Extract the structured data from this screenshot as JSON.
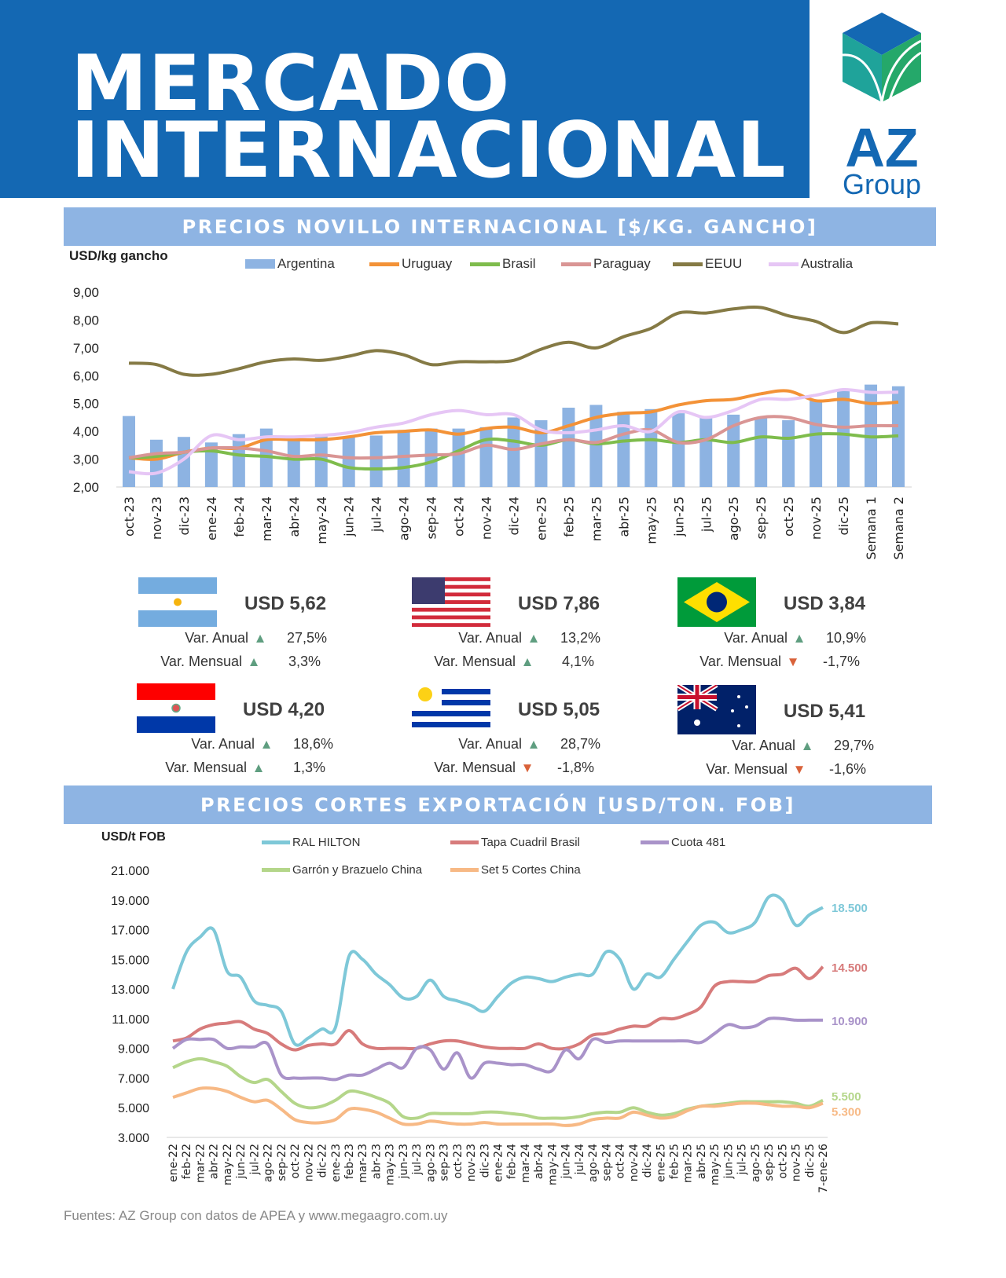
{
  "header": {
    "title_line1": "MERCADO",
    "title_line2": "INTERNACIONAL",
    "logo_text": "AZ Group",
    "brand_color": "#1468b3"
  },
  "section1": {
    "title": "PRECIOS NOVILLO INTERNACIONAL [$/KG. GANCHO]"
  },
  "section2": {
    "title": "PRECIOS CORTES EXPORTACIÓN [USD/TON. FOB]"
  },
  "chart_data": [
    {
      "type": "bar+line",
      "ylabel": "USD/kg gancho",
      "ylim": [
        2,
        9
      ],
      "yticks": [
        "9,00",
        "8,00",
        "7,00",
        "6,00",
        "5,00",
        "4,00",
        "3,00",
        "2,00"
      ],
      "legend": "top",
      "categories": [
        "oct-23",
        "nov-23",
        "dic-23",
        "ene-24",
        "feb-24",
        "mar-24",
        "abr-24",
        "may-24",
        "jun-24",
        "jul-24",
        "ago-24",
        "sep-24",
        "oct-24",
        "nov-24",
        "dic-24",
        "ene-25",
        "feb-25",
        "mar-25",
        "abr-25",
        "may-25",
        "jun-25",
        "jul-25",
        "ago-25",
        "sep-25",
        "oct-25",
        "nov-25",
        "dic-25",
        "Semana 1",
        "Semana 2"
      ],
      "series": [
        {
          "name": "Argentina",
          "kind": "bar",
          "color": "#8db3e2",
          "values": [
            4.55,
            3.7,
            3.8,
            3.6,
            3.9,
            4.1,
            3.7,
            3.9,
            3.8,
            3.85,
            4.05,
            4.1,
            4.1,
            4.15,
            4.5,
            4.4,
            4.85,
            4.95,
            4.7,
            4.8,
            4.65,
            4.5,
            4.6,
            4.5,
            4.4,
            5.1,
            5.45,
            5.68,
            5.62
          ]
        },
        {
          "name": "Uruguay",
          "kind": "line",
          "color": "#f39237",
          "values": [
            3.05,
            3.0,
            3.25,
            3.4,
            3.4,
            3.7,
            3.7,
            3.7,
            3.8,
            3.95,
            4.0,
            4.05,
            3.9,
            4.1,
            4.15,
            3.95,
            4.2,
            4.5,
            4.65,
            4.7,
            4.95,
            5.1,
            5.15,
            5.35,
            5.45,
            5.1,
            5.15,
            5.0,
            5.05
          ]
        },
        {
          "name": "Brasil",
          "kind": "line",
          "color": "#7ebc4c",
          "values": [
            3.05,
            3.1,
            3.25,
            3.3,
            3.15,
            3.1,
            3.0,
            3.0,
            2.7,
            2.65,
            2.7,
            2.9,
            3.3,
            3.7,
            3.65,
            3.5,
            3.7,
            3.55,
            3.65,
            3.7,
            3.6,
            3.7,
            3.6,
            3.8,
            3.75,
            3.9,
            3.9,
            3.8,
            3.84
          ]
        },
        {
          "name": "Paraguay",
          "kind": "line",
          "color": "#d99594",
          "values": [
            3.05,
            3.2,
            3.25,
            3.4,
            3.4,
            3.3,
            3.1,
            3.15,
            3.05,
            3.05,
            3.1,
            3.15,
            3.2,
            3.5,
            3.35,
            3.55,
            3.7,
            3.6,
            3.9,
            4.05,
            3.6,
            3.7,
            4.2,
            4.5,
            4.5,
            4.25,
            4.15,
            4.2,
            4.2
          ]
        },
        {
          "name": "EEUU",
          "kind": "line",
          "color": "#857a45",
          "values": [
            6.45,
            6.4,
            6.05,
            6.05,
            6.25,
            6.5,
            6.6,
            6.55,
            6.7,
            6.9,
            6.75,
            6.4,
            6.5,
            6.5,
            6.55,
            6.95,
            7.2,
            7.0,
            7.4,
            7.7,
            8.25,
            8.25,
            8.4,
            8.45,
            8.15,
            7.95,
            7.55,
            7.9,
            7.86
          ]
        },
        {
          "name": "Australia",
          "kind": "line",
          "color": "#e6c6f5",
          "values": [
            2.55,
            2.5,
            3.0,
            3.85,
            3.7,
            3.8,
            3.8,
            3.85,
            3.95,
            4.15,
            4.3,
            4.6,
            4.75,
            4.6,
            4.6,
            4.05,
            3.95,
            4.05,
            4.2,
            4.0,
            4.7,
            4.5,
            4.75,
            5.15,
            5.15,
            5.3,
            5.5,
            5.4,
            5.41
          ]
        }
      ]
    },
    {
      "type": "line",
      "ylabel": "USD/t FOB",
      "ylim": [
        3000,
        21000
      ],
      "yticks": [
        "21.000",
        "19.000",
        "17.000",
        "15.000",
        "13.000",
        "11.000",
        "9.000",
        "7.000",
        "5.000",
        "3.000"
      ],
      "legend": "top",
      "categories": [
        "ene-22",
        "feb-22",
        "mar-22",
        "abr-22",
        "may-22",
        "jun-22",
        "jul-22",
        "ago-22",
        "sep-22",
        "oct-22",
        "nov-22",
        "dic-22",
        "ene-23",
        "feb-23",
        "mar-23",
        "abr-23",
        "may-23",
        "jun-23",
        "jul-23",
        "ago-23",
        "sep-23",
        "oct-23",
        "nov-23",
        "dic-23",
        "ene-24",
        "feb-24",
        "mar-24",
        "abr-24",
        "may-24",
        "jun-24",
        "jul-24",
        "ago-24",
        "sep-24",
        "oct-24",
        "nov-24",
        "dic-24",
        "ene-25",
        "feb-25",
        "mar-25",
        "abr-25",
        "may-25",
        "jun-25",
        "jul-25",
        "ago-25",
        "sep-25",
        "oct-25",
        "nov-25",
        "dic-25",
        "7-ene-26"
      ],
      "series": [
        {
          "name": "RAL HILTON",
          "color": "#7ec8d8",
          "end_label": "18.500",
          "values": [
            13000,
            15500,
            16500,
            17000,
            14200,
            13800,
            12200,
            11900,
            11500,
            9300,
            9700,
            10300,
            10400,
            15200,
            15000,
            14000,
            13300,
            12400,
            12500,
            13600,
            12500,
            12200,
            11900,
            11500,
            12500,
            13400,
            13800,
            13700,
            13500,
            13800,
            14000,
            14000,
            15500,
            15000,
            13000,
            14000,
            13800,
            15000,
            16200,
            17300,
            17500,
            16800,
            17000,
            17500,
            19200,
            19000,
            17300,
            18000,
            18500
          ]
        },
        {
          "name": "Tapa Cuadril Brasil",
          "color": "#d77b7b",
          "end_label": "14.500",
          "values": [
            9500,
            9700,
            10300,
            10600,
            10700,
            10800,
            10300,
            10000,
            9300,
            8900,
            9200,
            9300,
            9300,
            10200,
            9300,
            9000,
            9000,
            9000,
            9000,
            9300,
            9500,
            9500,
            9300,
            9100,
            9000,
            9000,
            9000,
            9300,
            9000,
            9000,
            9300,
            9900,
            10000,
            10300,
            10500,
            10500,
            11000,
            11000,
            11300,
            11800,
            13200,
            13500,
            13500,
            13500,
            13900,
            14000,
            14400,
            13700,
            14500
          ]
        },
        {
          "name": "Cuota 481",
          "color": "#a993c9",
          "end_label": "10.900",
          "values": [
            9000,
            9600,
            9600,
            9600,
            9000,
            9100,
            9100,
            9300,
            7200,
            7000,
            7000,
            7000,
            6900,
            7200,
            7200,
            7600,
            8000,
            7700,
            9000,
            8900,
            7600,
            8700,
            7000,
            8000,
            8000,
            7900,
            7900,
            7600,
            7500,
            8900,
            8300,
            9600,
            9400,
            9500,
            9500,
            9500,
            9500,
            9500,
            9500,
            9400,
            10000,
            10600,
            10400,
            10500,
            11000,
            11000,
            10900,
            10900,
            10900
          ]
        },
        {
          "name": "Garrón y Brazuelo China",
          "color": "#b4d68a",
          "end_label": "5.500",
          "values": [
            7700,
            8100,
            8300,
            8100,
            7800,
            7100,
            6700,
            6900,
            6100,
            5300,
            5000,
            5100,
            5500,
            6100,
            6000,
            5700,
            5300,
            4400,
            4300,
            4600,
            4600,
            4600,
            4600,
            4700,
            4700,
            4600,
            4500,
            4300,
            4300,
            4300,
            4400,
            4600,
            4700,
            4700,
            5000,
            4700,
            4500,
            4600,
            4900,
            5100,
            5200,
            5300,
            5400,
            5400,
            5400,
            5400,
            5300,
            5100,
            5500
          ]
        },
        {
          "name": "Set 5 Cortes China",
          "color": "#f7b985",
          "end_label": "5.300",
          "values": [
            5700,
            6000,
            6300,
            6300,
            6100,
            5700,
            5400,
            5500,
            4900,
            4200,
            4000,
            4000,
            4200,
            4900,
            4900,
            4700,
            4300,
            3900,
            3900,
            4100,
            4000,
            3900,
            3900,
            4000,
            3900,
            3900,
            3900,
            3900,
            3900,
            3800,
            3900,
            4200,
            4300,
            4300,
            4700,
            4500,
            4300,
            4400,
            4800,
            5100,
            5100,
            5200,
            5300,
            5300,
            5200,
            5100,
            5100,
            5000,
            5300
          ]
        }
      ]
    }
  ],
  "cards": [
    {
      "country": "Argentina",
      "flag": "argentina-flag",
      "price": "USD 5,62",
      "anual_label": "Var. Anual",
      "anual": "27,5%",
      "anual_dir": "up",
      "mensual_label": "Var. Mensual",
      "mensual": "3,3%",
      "mensual_dir": "up"
    },
    {
      "country": "EEUU",
      "flag": "usa-flag",
      "price": "USD 7,86",
      "anual_label": "Var. Anual",
      "anual": "13,2%",
      "anual_dir": "up",
      "mensual_label": "Var. Mensual",
      "mensual": "4,1%",
      "mensual_dir": "up"
    },
    {
      "country": "Brasil",
      "flag": "brazil-flag",
      "price": "USD 3,84",
      "anual_label": "Var. Anual",
      "anual": "10,9%",
      "anual_dir": "up",
      "mensual_label": "Var. Mensual",
      "mensual": "-1,7%",
      "mensual_dir": "down"
    },
    {
      "country": "Paraguay",
      "flag": "paraguay-flag",
      "price": "USD 4,20",
      "anual_label": "Var. Anual",
      "anual": "18,6%",
      "anual_dir": "up",
      "mensual_label": "Var. Mensual",
      "mensual": "1,3%",
      "mensual_dir": "up"
    },
    {
      "country": "Uruguay",
      "flag": "uruguay-flag",
      "price": "USD 5,05",
      "anual_label": "Var. Anual",
      "anual": "28,7%",
      "anual_dir": "up",
      "mensual_label": "Var. Mensual",
      "mensual": "-1,8%",
      "mensual_dir": "down"
    },
    {
      "country": "Australia",
      "flag": "australia-flag",
      "price": "USD 5,41",
      "anual_label": "Var. Anual",
      "anual": "29,7%",
      "anual_dir": "up",
      "mensual_label": "Var. Mensual",
      "mensual": "-1,6%",
      "mensual_dir": "down"
    }
  ],
  "colors": {
    "up": "#5f9e80",
    "down": "#d9623a",
    "section": "#8eb4e3"
  },
  "footer": {
    "source": "Fuentes: AZ Group con datos de APEA y www.megaagro.com.uy"
  }
}
